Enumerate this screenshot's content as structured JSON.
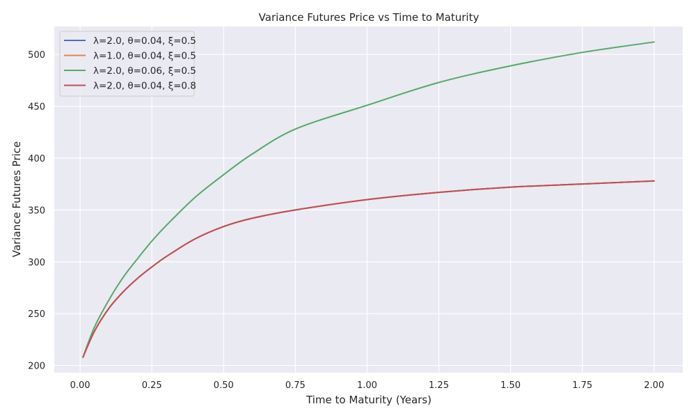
{
  "chart_data": {
    "type": "line",
    "title": "Variance Futures Price vs Time to Maturity",
    "xlabel": "Time to Maturity (Years)",
    "ylabel": "Variance Futures Price",
    "xlim": [
      -0.09,
      2.1
    ],
    "ylim": [
      193,
      527
    ],
    "xticks": [
      0.0,
      0.25,
      0.5,
      0.75,
      1.0,
      1.25,
      1.5,
      1.75,
      2.0
    ],
    "xtick_labels": [
      "0.00",
      "0.25",
      "0.50",
      "0.75",
      "1.00",
      "1.25",
      "1.50",
      "1.75",
      "2.00"
    ],
    "yticks": [
      200,
      250,
      300,
      350,
      400,
      450,
      500
    ],
    "ytick_labels": [
      "200",
      "250",
      "300",
      "350",
      "400",
      "450",
      "500"
    ],
    "grid": true,
    "legend": "top-left",
    "background": "#eaeaf2",
    "x": [
      0.01,
      0.05,
      0.1,
      0.15,
      0.2,
      0.25,
      0.3,
      0.4,
      0.5,
      0.6,
      0.75,
      1.0,
      1.25,
      1.5,
      1.75,
      2.0
    ],
    "series": [
      {
        "name": "λ=2.0, θ=0.04, ξ=0.5",
        "color": "#4c72b0",
        "values": [
          208,
          233,
          255,
          271,
          284,
          295,
          305,
          322,
          334,
          342,
          350,
          360,
          367,
          372,
          375,
          378
        ]
      },
      {
        "name": "λ=1.0, θ=0.04, ξ=0.5",
        "color": "#dd8452",
        "values": [
          208,
          233,
          255,
          271,
          284,
          295,
          305,
          322,
          334,
          342,
          350,
          360,
          367,
          372,
          375,
          378
        ]
      },
      {
        "name": "λ=2.0, θ=0.06, ξ=0.5",
        "color": "#55a868",
        "values": [
          208,
          237,
          263,
          285,
          303,
          320,
          335,
          362,
          384,
          404,
          428,
          451,
          473,
          489,
          502,
          512
        ]
      },
      {
        "name": "λ=2.0, θ=0.04, ξ=0.8",
        "color": "#c44e52",
        "values": [
          208,
          233,
          255,
          271,
          284,
          295,
          305,
          322,
          334,
          342,
          350,
          360,
          367,
          372,
          375,
          378
        ]
      }
    ]
  }
}
